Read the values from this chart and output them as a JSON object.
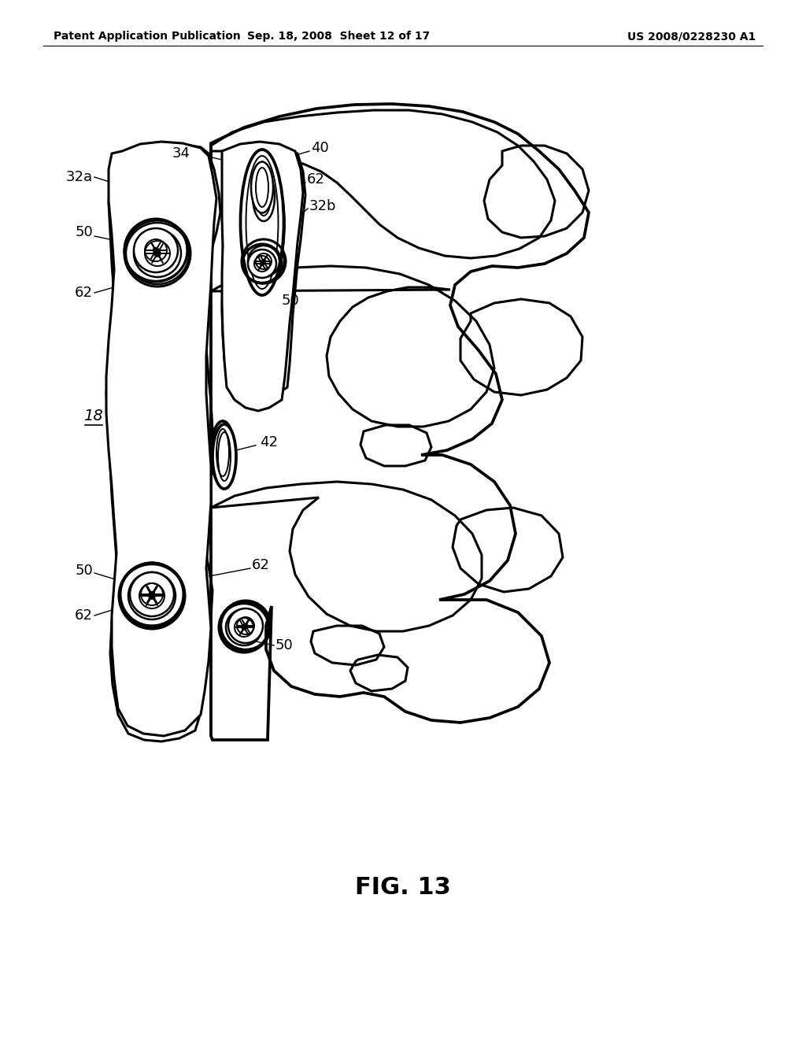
{
  "bg_color": "#ffffff",
  "header_left": "Patent Application Publication",
  "header_mid": "Sep. 18, 2008  Sheet 12 of 17",
  "header_right": "US 2008/0228230 A1",
  "fig_label": "FIG. 13",
  "header_fontsize": 10,
  "label_fontsize": 13,
  "fig_label_fontsize": 22
}
